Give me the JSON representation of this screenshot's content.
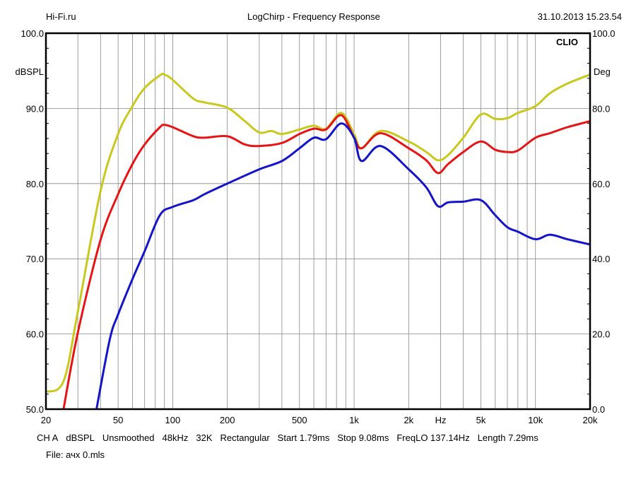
{
  "header": {
    "left": "Hi-Fi.ru",
    "title": "LogChirp - Frequency Response",
    "datetime": "31.10.2013 15.23.54"
  },
  "footer": {
    "info": [
      "CH A",
      "dBSPL",
      "Unsmoothed",
      "48kHz",
      "32K",
      "Rectangular",
      "Start 1.79ms",
      "Stop 9.08ms",
      "FreqLO 137.14Hz",
      "Length 7.29ms"
    ],
    "file": "File: ачх 0.mls"
  },
  "chart_data": {
    "type": "line",
    "title": "LogChirp - Frequency Response",
    "watermark": "CLIO",
    "xscale": "log",
    "xlim": [
      20,
      20000
    ],
    "ylim": [
      50,
      100
    ],
    "y2lim": [
      0,
      100
    ],
    "ylabel": "dBSPL",
    "y2label": "Deg",
    "xunit": "Hz",
    "xticks": [
      {
        "v": 20,
        "l": "20"
      },
      {
        "v": 50,
        "l": "50"
      },
      {
        "v": 100,
        "l": "100"
      },
      {
        "v": 200,
        "l": "200"
      },
      {
        "v": 500,
        "l": "500"
      },
      {
        "v": 1000,
        "l": "1k"
      },
      {
        "v": 2000,
        "l": "2k"
      },
      {
        "v": 5000,
        "l": "5k"
      },
      {
        "v": 10000,
        "l": "10k"
      },
      {
        "v": 20000,
        "l": "20k"
      }
    ],
    "yticks": [
      "100.0",
      "90.0",
      "80.0",
      "70.0",
      "60.0",
      "50.0"
    ],
    "y2ticks": [
      "100.0",
      "80.0",
      "60.0",
      "40.0",
      "20.0",
      "0.0"
    ],
    "grid": true,
    "series": [
      {
        "color": "#c8c81e",
        "points": [
          [
            20,
            52.3
          ],
          [
            25,
            53.7
          ],
          [
            30,
            63
          ],
          [
            40,
            79
          ],
          [
            50,
            86.6
          ],
          [
            60,
            90.3
          ],
          [
            70,
            92.7
          ],
          [
            85,
            94.4
          ],
          [
            90,
            94.5
          ],
          [
            100,
            93.8
          ],
          [
            130,
            91.3
          ],
          [
            150,
            90.8
          ],
          [
            200,
            90.1
          ],
          [
            250,
            88.3
          ],
          [
            300,
            86.8
          ],
          [
            350,
            87
          ],
          [
            400,
            86.6
          ],
          [
            500,
            87.2
          ],
          [
            600,
            87.7
          ],
          [
            700,
            87.3
          ],
          [
            850,
            89.4
          ],
          [
            1000,
            86.6
          ],
          [
            1100,
            84.7
          ],
          [
            1400,
            87
          ],
          [
            2000,
            85.6
          ],
          [
            2500,
            84.2
          ],
          [
            2900,
            83.1
          ],
          [
            3300,
            83.8
          ],
          [
            4000,
            86.1
          ],
          [
            5000,
            89.2
          ],
          [
            6000,
            88.6
          ],
          [
            7000,
            88.7
          ],
          [
            8000,
            89.4
          ],
          [
            10000,
            90.3
          ],
          [
            12000,
            92
          ],
          [
            15000,
            93.3
          ],
          [
            20000,
            94.5
          ]
        ]
      },
      {
        "color": "#e61414",
        "points": [
          [
            25,
            50
          ],
          [
            30,
            60.2
          ],
          [
            40,
            72.5
          ],
          [
            50,
            78.6
          ],
          [
            60,
            82.6
          ],
          [
            70,
            85.2
          ],
          [
            85,
            87.5
          ],
          [
            90,
            87.8
          ],
          [
            100,
            87.5
          ],
          [
            130,
            86.3
          ],
          [
            150,
            86.1
          ],
          [
            200,
            86.3
          ],
          [
            250,
            85.2
          ],
          [
            300,
            85
          ],
          [
            400,
            85.4
          ],
          [
            500,
            86.6
          ],
          [
            600,
            87.3
          ],
          [
            700,
            87.2
          ],
          [
            850,
            89.1
          ],
          [
            1000,
            86.1
          ],
          [
            1100,
            84.7
          ],
          [
            1400,
            86.7
          ],
          [
            2000,
            84.7
          ],
          [
            2500,
            83.1
          ],
          [
            2900,
            81.4
          ],
          [
            3300,
            82.6
          ],
          [
            4000,
            84.2
          ],
          [
            5000,
            85.6
          ],
          [
            6000,
            84.5
          ],
          [
            7000,
            84.2
          ],
          [
            8000,
            84.4
          ],
          [
            10000,
            86.1
          ],
          [
            12000,
            86.7
          ],
          [
            15000,
            87.5
          ],
          [
            20000,
            88.3
          ]
        ]
      },
      {
        "color": "#1414c8",
        "points": [
          [
            38,
            50
          ],
          [
            45,
            59.3
          ],
          [
            50,
            62.6
          ],
          [
            60,
            67.3
          ],
          [
            70,
            71
          ],
          [
            85,
            75.8
          ],
          [
            100,
            76.9
          ],
          [
            130,
            77.8
          ],
          [
            150,
            78.6
          ],
          [
            200,
            80
          ],
          [
            300,
            81.9
          ],
          [
            400,
            83
          ],
          [
            500,
            84.7
          ],
          [
            600,
            86.1
          ],
          [
            700,
            85.9
          ],
          [
            850,
            88
          ],
          [
            1000,
            86.1
          ],
          [
            1100,
            83
          ],
          [
            1400,
            85
          ],
          [
            2000,
            81.9
          ],
          [
            2500,
            79.5
          ],
          [
            2900,
            77
          ],
          [
            3300,
            77.5
          ],
          [
            4000,
            77.6
          ],
          [
            5000,
            77.8
          ],
          [
            6000,
            75.8
          ],
          [
            7000,
            74.2
          ],
          [
            8000,
            73.6
          ],
          [
            10000,
            72.6
          ],
          [
            12000,
            73.2
          ],
          [
            15000,
            72.6
          ],
          [
            20000,
            71.9
          ]
        ]
      }
    ]
  }
}
